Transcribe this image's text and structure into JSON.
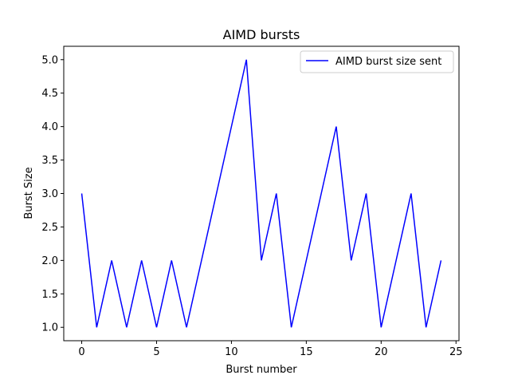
{
  "chart_data": {
    "type": "line",
    "title": "AIMD bursts",
    "xlabel": "Burst number",
    "ylabel": "Burst Size",
    "xlim": [
      -1.2,
      25.2
    ],
    "ylim": [
      0.8,
      5.2
    ],
    "xticks": [
      0,
      5,
      10,
      15,
      20,
      25
    ],
    "xtick_labels": [
      "0",
      "5",
      "10",
      "15",
      "20",
      "25"
    ],
    "yticks": [
      1.0,
      1.5,
      2.0,
      2.5,
      3.0,
      3.5,
      4.0,
      4.5,
      5.0
    ],
    "ytick_labels": [
      "1.0",
      "1.5",
      "2.0",
      "2.5",
      "3.0",
      "3.5",
      "4.0",
      "4.5",
      "5.0"
    ],
    "grid": false,
    "legend_position": "top-right",
    "series": [
      {
        "name": "AIMD burst size sent",
        "color": "#0000ff",
        "x": [
          0,
          1,
          2,
          3,
          4,
          5,
          6,
          7,
          8,
          9,
          10,
          11,
          12,
          13,
          14,
          15,
          16,
          17,
          18,
          19,
          20,
          21,
          22,
          23,
          24
        ],
        "y": [
          3,
          1,
          2,
          1,
          2,
          1,
          2,
          1,
          2,
          3,
          4,
          5,
          2,
          3,
          1,
          2,
          3,
          4,
          2,
          3,
          1,
          2,
          3,
          1,
          2
        ]
      }
    ]
  }
}
